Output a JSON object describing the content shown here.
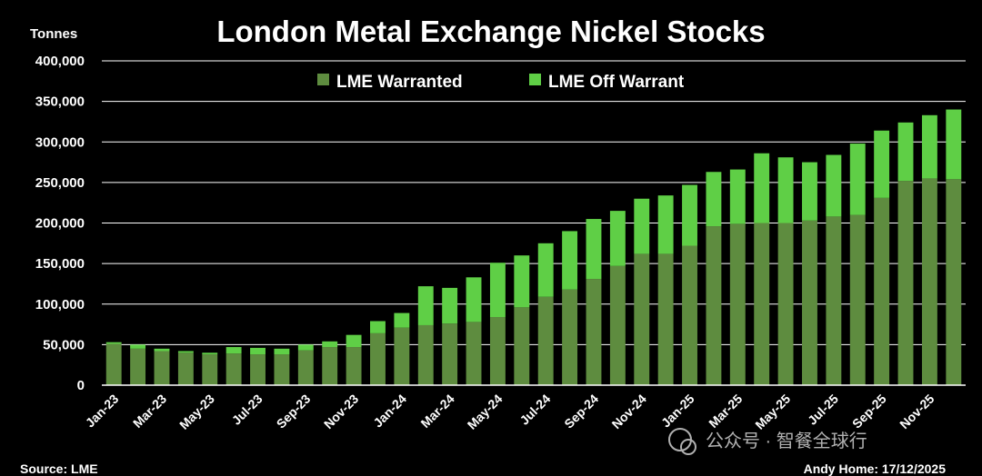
{
  "chart_data": {
    "type": "bar",
    "stacked": true,
    "title": "London Metal Exchange Nickel Stocks",
    "ylabel": "Tonnes",
    "ylim": [
      0,
      400000
    ],
    "yticks": [
      "0",
      "50,000",
      "100,000",
      "150,000",
      "200,000",
      "250,000",
      "300,000",
      "350,000",
      "400,000"
    ],
    "ytick_values": [
      0,
      50000,
      100000,
      150000,
      200000,
      250000,
      300000,
      350000,
      400000
    ],
    "grid": true,
    "legend_position": "top",
    "categories": [
      "Jan-23",
      "Feb-23",
      "Mar-23",
      "Apr-23",
      "May-23",
      "Jun-23",
      "Jul-23",
      "Aug-23",
      "Sep-23",
      "Oct-23",
      "Nov-23",
      "Dec-23",
      "Jan-24",
      "Feb-24",
      "Mar-24",
      "Apr-24",
      "May-24",
      "Jun-24",
      "Jul-24",
      "Aug-24",
      "Sep-24",
      "Oct-24",
      "Nov-24",
      "Dec-24",
      "Jan-25",
      "Feb-25",
      "Mar-25",
      "Apr-25",
      "May-25",
      "Jun-25",
      "Jul-25",
      "Aug-25",
      "Sep-25",
      "Oct-25",
      "Nov-25",
      "Dec-25"
    ],
    "xtick_labels": [
      "Jan-23",
      "",
      "Mar-23",
      "",
      "May-23",
      "",
      "Jul-23",
      "",
      "Sep-23",
      "",
      "Nov-23",
      "",
      "Jan-24",
      "",
      "Mar-24",
      "",
      "May-24",
      "",
      "Jul-24",
      "",
      "Sep-24",
      "",
      "Nov-24",
      "",
      "Jan-25",
      "",
      "Mar-25",
      "",
      "May-25",
      "",
      "Jul-25",
      "",
      "Sep-25",
      "",
      "Nov-25",
      ""
    ],
    "series": [
      {
        "name": "LME Warranted",
        "color": "#5e8c3f",
        "values": [
          51000,
          45000,
          42000,
          40000,
          38000,
          39000,
          38000,
          38000,
          43000,
          47000,
          47000,
          64000,
          71000,
          74000,
          76000,
          78000,
          84000,
          96000,
          109000,
          118000,
          131000,
          147000,
          162000,
          162000,
          172000,
          196000,
          199000,
          200000,
          200000,
          203000,
          208000,
          210000,
          231000,
          252000,
          255000,
          254000
        ]
      },
      {
        "name": "LME Off Warrant",
        "color": "#5fcf46",
        "values": [
          2000,
          5000,
          3000,
          2000,
          2000,
          8000,
          8000,
          7000,
          7000,
          7000,
          15000,
          15000,
          18000,
          48000,
          44000,
          55000,
          67000,
          64000,
          66000,
          72000,
          74000,
          68000,
          68000,
          72000,
          75000,
          67000,
          67000,
          86000,
          81000,
          72000,
          76000,
          88000,
          83000,
          72000,
          78000,
          86000
        ]
      }
    ]
  },
  "footer": {
    "source": "Source: LME",
    "credit": "Andy Home: 17/12/2025"
  },
  "watermark": {
    "text": "公众号 · 智餐全球行"
  }
}
